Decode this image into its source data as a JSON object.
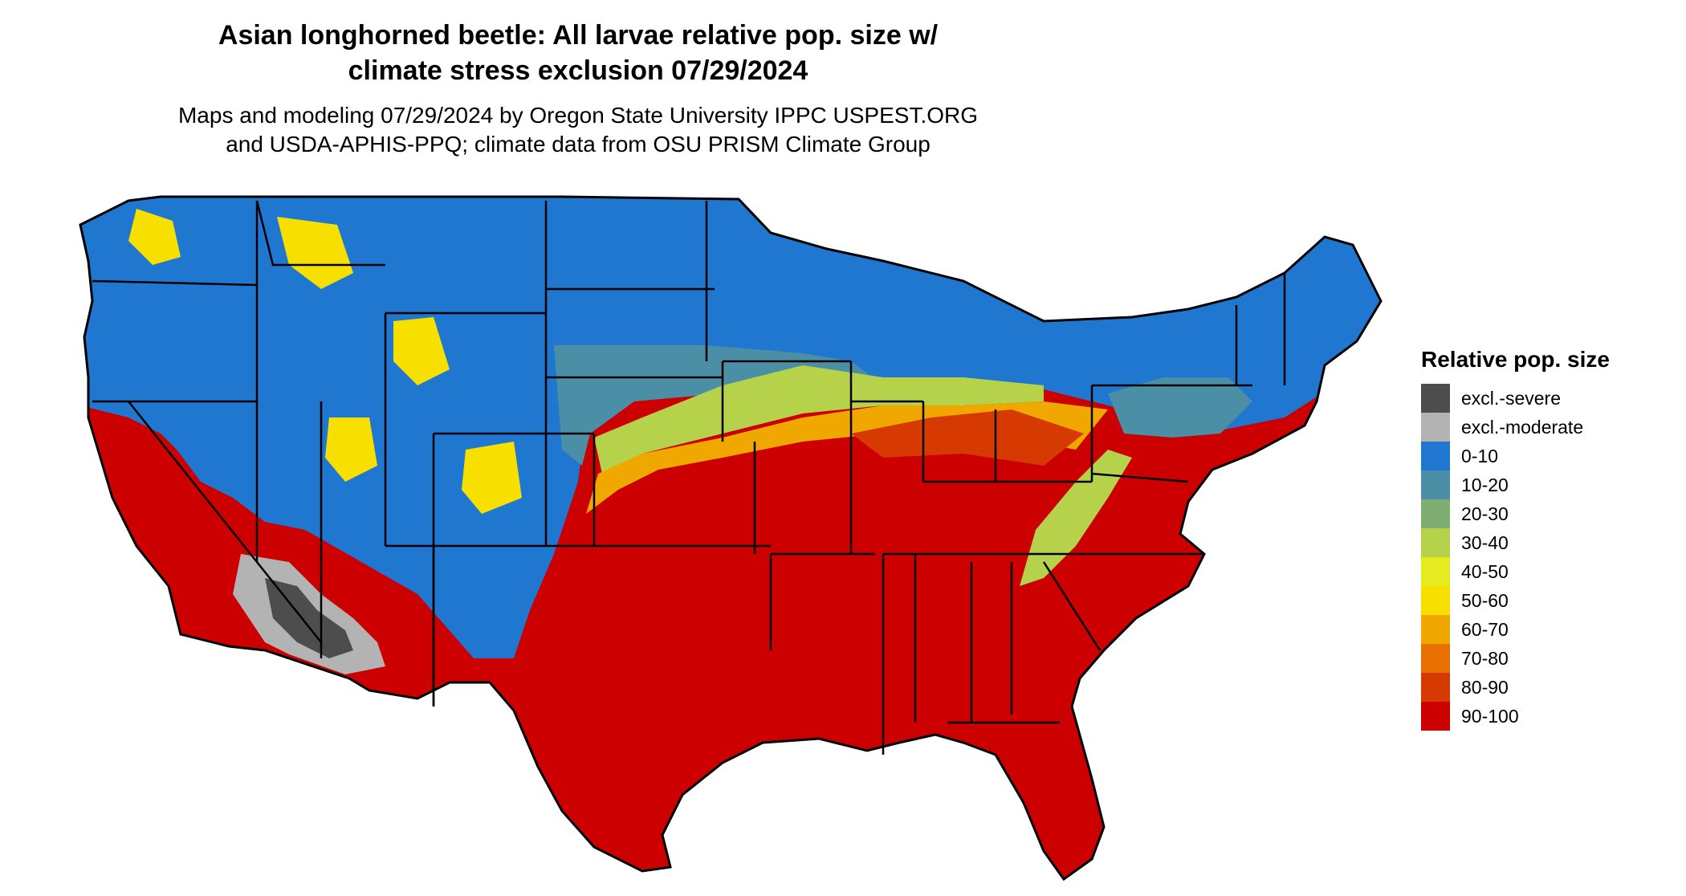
{
  "title": "Asian longhorned beetle: All larvae relative pop. size w/ climate stress exclusion 07/29/2024",
  "subtitle": "Maps and modeling 07/29/2024 by Oregon State University IPPC USPEST.ORG and USDA-APHIS-PPQ; climate data from OSU PRISM Climate Group",
  "legend": {
    "title": "Relative pop. size",
    "items": [
      {
        "label": "excl.-severe",
        "color": "#4d4d4d"
      },
      {
        "label": "excl.-moderate",
        "color": "#b3b3b3"
      },
      {
        "label": "0-10",
        "color": "#1f77d0"
      },
      {
        "label": "10-20",
        "color": "#4a8fa6"
      },
      {
        "label": "20-30",
        "color": "#7fae72"
      },
      {
        "label": "30-40",
        "color": "#b5d24a"
      },
      {
        "label": "40-50",
        "color": "#e4ec1f"
      },
      {
        "label": "50-60",
        "color": "#f7e000"
      },
      {
        "label": "60-70",
        "color": "#f0a800"
      },
      {
        "label": "70-80",
        "color": "#e87000"
      },
      {
        "label": "80-90",
        "color": "#d63a00"
      },
      {
        "label": "90-100",
        "color": "#cc0000"
      }
    ]
  },
  "map": {
    "region": "contiguous-united-states",
    "colors": {
      "north": "#1f77d0",
      "north_transition": "#4a8fa6",
      "mid_transition": "#b5d24a",
      "central_transition": "#f0a800",
      "south": "#cc0000",
      "southern_transition": "#d63a00",
      "desert_severe": "#4d4d4d",
      "desert_moderate": "#b3b3b3",
      "mountain_yellow": "#f7e000",
      "state_lines": "#000000"
    }
  }
}
